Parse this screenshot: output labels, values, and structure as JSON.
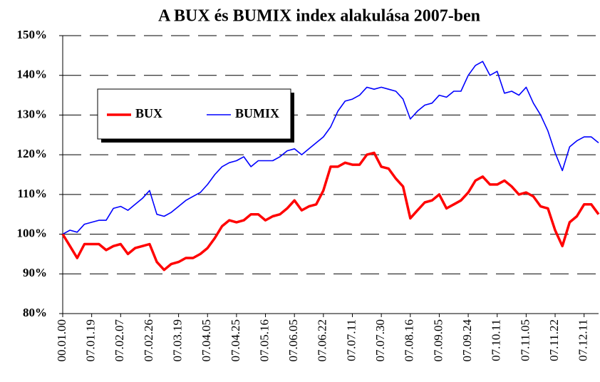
{
  "chart_data": {
    "type": "line",
    "title": "A BUX és BUMIX index alakulása 2007-ben",
    "categories": [
      "00.01.00",
      null,
      null,
      null,
      "07.01.19",
      null,
      null,
      null,
      "07.02.07",
      null,
      null,
      null,
      "07.02.26",
      null,
      null,
      null,
      "07.03.19",
      null,
      null,
      null,
      "07.04.05",
      null,
      null,
      null,
      "07.04.25",
      null,
      null,
      null,
      "07.05.16",
      null,
      null,
      null,
      "07.06.05",
      null,
      null,
      null,
      "07.06.22",
      null,
      null,
      null,
      "07.07.11",
      null,
      null,
      null,
      "07.07.30",
      null,
      null,
      null,
      "07.08.16",
      null,
      null,
      null,
      "07.09.05",
      null,
      null,
      null,
      "07.09.24",
      null,
      null,
      null,
      "07.10.11",
      null,
      null,
      null,
      "07.11.05",
      null,
      null,
      null,
      "07.11.22",
      null,
      null,
      null,
      "07.12.11",
      null,
      null
    ],
    "series": [
      {
        "name": "BUX",
        "color": "#ff0000",
        "values": [
          100,
          97,
          94,
          97.5,
          97.5,
          97.5,
          96,
          97,
          97.5,
          95,
          96.5,
          97,
          97.5,
          93,
          91,
          92.5,
          93,
          94,
          94,
          95,
          96.5,
          99,
          102,
          103.5,
          103,
          103.5,
          105,
          105,
          103.5,
          104.5,
          105,
          106.5,
          108.5,
          106,
          107,
          107.5,
          111,
          117,
          117,
          118,
          117.5,
          117.5,
          120,
          120.5,
          117,
          116.5,
          114,
          112,
          104,
          106,
          108,
          108.5,
          110,
          106.5,
          107.5,
          108.5,
          110.5,
          113.5,
          114.5,
          112.5,
          112.5,
          113.5,
          112,
          110,
          110.5,
          109.5,
          107,
          106.5,
          101,
          97,
          103,
          104.5,
          107.5,
          107.5,
          105
        ]
      },
      {
        "name": "BUMIX",
        "color": "#0000ff",
        "values": [
          100,
          101,
          100.5,
          102.5,
          103,
          103.5,
          103.5,
          106.5,
          107,
          106,
          107.5,
          109,
          111,
          105,
          104.5,
          105.5,
          107,
          108.5,
          109.5,
          110.5,
          112.5,
          115,
          117,
          118,
          118.5,
          119.5,
          117,
          118.5,
          118.5,
          118.5,
          119.5,
          121,
          121.5,
          120,
          121.5,
          123,
          124.5,
          127,
          131,
          133.5,
          134,
          135,
          137,
          136.5,
          137,
          136.5,
          136,
          134,
          129,
          131,
          132.5,
          133,
          135,
          134.5,
          136,
          136,
          140,
          142.5,
          143.5,
          140,
          141,
          135.5,
          136,
          135,
          137,
          133,
          130,
          126,
          120.5,
          116,
          122,
          123.5,
          124.5,
          124.5,
          123
        ]
      }
    ],
    "ylim": [
      80,
      150
    ],
    "yticks": [
      {
        "value": 80,
        "label": "80%"
      },
      {
        "value": 90,
        "label": "90%"
      },
      {
        "value": 100,
        "label": "100%"
      },
      {
        "value": 110,
        "label": "110%"
      },
      {
        "value": 120,
        "label": "120%"
      },
      {
        "value": 130,
        "label": "130%"
      },
      {
        "value": 140,
        "label": "140%"
      },
      {
        "value": 150,
        "label": "150%"
      }
    ],
    "grid": true,
    "legend": "upper left"
  }
}
